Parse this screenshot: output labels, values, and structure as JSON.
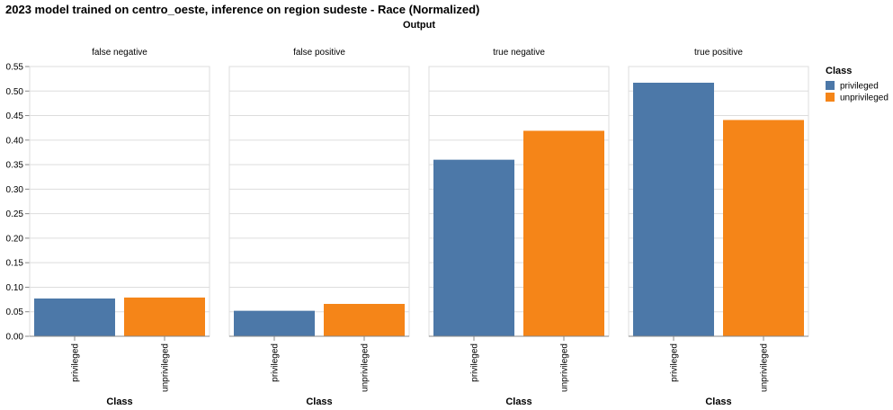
{
  "chart_data": {
    "type": "bar",
    "title": "2023 model trained on centro_oeste, inference on region sudeste - Race (Normalized)",
    "column_title": "Output",
    "xlabel": "Class",
    "ylabel": "",
    "ylim": [
      0,
      0.55
    ],
    "yticks": [
      "0.00",
      "0.05",
      "0.10",
      "0.15",
      "0.20",
      "0.25",
      "0.30",
      "0.35",
      "0.40",
      "0.45",
      "0.50",
      "0.55"
    ],
    "grid": true,
    "categories": [
      "privileged",
      "unprivileged"
    ],
    "colors": {
      "privileged": "#4c78a8",
      "unprivileged": "#f58518"
    },
    "legend": {
      "title": "Class",
      "position": "right",
      "entries": [
        "privileged",
        "unprivileged"
      ]
    },
    "facets": [
      {
        "name": "false negative",
        "values": [
          0.077,
          0.079
        ]
      },
      {
        "name": "false positive",
        "values": [
          0.052,
          0.066
        ]
      },
      {
        "name": "true negative",
        "values": [
          0.36,
          0.419
        ]
      },
      {
        "name": "true positive",
        "values": [
          0.517,
          0.441
        ]
      }
    ]
  }
}
